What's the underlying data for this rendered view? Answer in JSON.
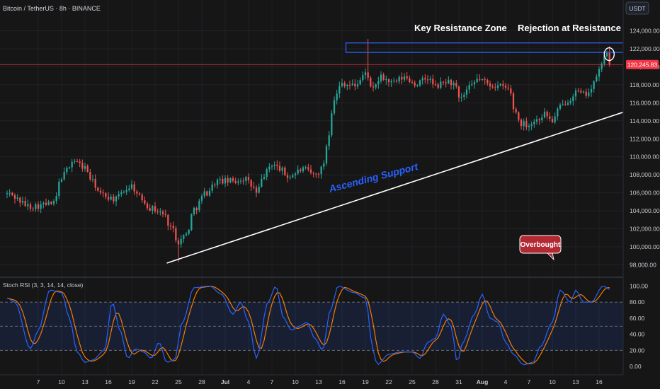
{
  "header": {
    "symbol_title": "Bitcoin / TetherUS · 8h · BINANCE",
    "currency_button": "USDT"
  },
  "colors": {
    "up": "#26a69a",
    "down": "#ef5350",
    "resistance_box": "#2962ff",
    "support_line": "#ffffff",
    "rsi_k": "#2962ff",
    "rsi_d": "#f57c00",
    "last_price": "#f23645",
    "badge": "#b22833"
  },
  "chart_data": [
    {
      "type": "candlestick",
      "title": "Bitcoin / TetherUS · 8h · BINANCE",
      "ylim": [
        97000,
        125500
      ],
      "y_ticks": [
        98000,
        100000,
        102000,
        104000,
        106000,
        108000,
        110000,
        112000,
        114000,
        116000,
        118000,
        120000,
        122000,
        124000
      ],
      "y_tick_labels": [
        "98,000.00",
        "100,000.00",
        "102,000.00",
        "104,000.00",
        "106,000.00",
        "108,000.00",
        "110,000.00",
        "112,000.00",
        "114,000.00",
        "116,000.00",
        "118,000.00",
        "120,000.00",
        "122,000.00",
        "124,000.00"
      ],
      "x_tick_labels": [
        "7",
        "10",
        "13",
        "16",
        "19",
        "22",
        "25",
        "28",
        "Jul",
        "4",
        "7",
        "10",
        "13",
        "16",
        "19",
        "22",
        "25",
        "28",
        "31",
        "Aug",
        "4",
        "7",
        "10",
        "13",
        "16"
      ],
      "last_price": 120245.83,
      "last_price_label": "120,245.83",
      "anchors": [
        {
          "d": 0,
          "p": 105900
        },
        {
          "d": 3,
          "p": 104500
        },
        {
          "d": 6,
          "p": 104800
        },
        {
          "d": 7,
          "p": 107800
        },
        {
          "d": 8.5,
          "p": 109600
        },
        {
          "d": 10,
          "p": 108800
        },
        {
          "d": 11,
          "p": 107200
        },
        {
          "d": 12,
          "p": 105800
        },
        {
          "d": 14,
          "p": 105300
        },
        {
          "d": 15,
          "p": 106300
        },
        {
          "d": 16,
          "p": 106800
        },
        {
          "d": 17,
          "p": 105500
        },
        {
          "d": 18.5,
          "p": 104300
        },
        {
          "d": 20,
          "p": 103700
        },
        {
          "d": 21,
          "p": 102300
        },
        {
          "d": 22,
          "p": 100600
        },
        {
          "d": 23,
          "p": 101400
        },
        {
          "d": 24,
          "p": 104200
        },
        {
          "d": 25.5,
          "p": 106000
        },
        {
          "d": 27,
          "p": 107300
        },
        {
          "d": 29,
          "p": 107300
        },
        {
          "d": 30.5,
          "p": 107600
        },
        {
          "d": 31.5,
          "p": 106700
        },
        {
          "d": 32,
          "p": 105900
        },
        {
          "d": 33,
          "p": 108000
        },
        {
          "d": 34,
          "p": 109200
        },
        {
          "d": 35,
          "p": 108700
        },
        {
          "d": 36,
          "p": 107800
        },
        {
          "d": 38,
          "p": 108600
        },
        {
          "d": 39.5,
          "p": 108000
        },
        {
          "d": 40.5,
          "p": 108700
        },
        {
          "d": 41,
          "p": 111300
        },
        {
          "d": 42,
          "p": 116500
        },
        {
          "d": 43,
          "p": 118200
        },
        {
          "d": 44.5,
          "p": 117900
        },
        {
          "d": 46.2,
          "p": 119300
        },
        {
          "d": 46.8,
          "p": 117300
        },
        {
          "d": 48,
          "p": 118800
        },
        {
          "d": 49.5,
          "p": 118200
        },
        {
          "d": 51,
          "p": 118800
        },
        {
          "d": 52.5,
          "p": 118100
        },
        {
          "d": 54,
          "p": 118700
        },
        {
          "d": 55,
          "p": 117800
        },
        {
          "d": 56.5,
          "p": 118400
        },
        {
          "d": 57.5,
          "p": 118000
        },
        {
          "d": 58,
          "p": 116300
        },
        {
          "d": 59.5,
          "p": 117700
        },
        {
          "d": 60.5,
          "p": 118700
        },
        {
          "d": 62,
          "p": 118000
        },
        {
          "d": 63.5,
          "p": 117800
        },
        {
          "d": 64.5,
          "p": 117500
        },
        {
          "d": 65,
          "p": 115400
        },
        {
          "d": 66,
          "p": 113700
        },
        {
          "d": 67,
          "p": 113600
        },
        {
          "d": 68,
          "p": 114100
        },
        {
          "d": 69,
          "p": 114800
        },
        {
          "d": 70,
          "p": 114000
        },
        {
          "d": 71,
          "p": 115500
        },
        {
          "d": 72,
          "p": 116300
        },
        {
          "d": 73,
          "p": 117200
        },
        {
          "d": 74,
          "p": 116900
        },
        {
          "d": 75,
          "p": 117500
        },
        {
          "d": 76,
          "p": 119600
        },
        {
          "d": 77,
          "p": 121800
        },
        {
          "d": 77.6,
          "p": 120300
        }
      ],
      "annotations": {
        "key_resistance": "Key Resistance Zone",
        "rejection": "Rejection at Resistance",
        "ascending_support": "Ascending Support",
        "overbought": "Overbought"
      },
      "resistance_zone": {
        "y_low": 121600,
        "y_high": 122650,
        "x_from_day": 43.5,
        "x_to_day": 79.5
      },
      "support_line": {
        "from": {
          "d": 20.5,
          "p": 98200
        },
        "to": {
          "d": 81,
          "p": 115500
        }
      }
    },
    {
      "type": "line",
      "title": "Stoch RSI (3, 3, 14, 14, close)",
      "ylim": [
        -5,
        105
      ],
      "y_ticks": [
        0,
        20,
        40,
        60,
        80,
        100
      ],
      "y_tick_labels": [
        "0.00",
        "20.00",
        "40.00",
        "60.00",
        "80.00",
        "100.00"
      ],
      "bands": [
        20,
        50,
        80
      ],
      "k_anchors": [
        {
          "d": 0,
          "v": 85
        },
        {
          "d": 1,
          "v": 80
        },
        {
          "d": 3,
          "v": 22
        },
        {
          "d": 4,
          "v": 45
        },
        {
          "d": 5.5,
          "v": 95
        },
        {
          "d": 7,
          "v": 92
        },
        {
          "d": 8,
          "v": 60
        },
        {
          "d": 9,
          "v": 18
        },
        {
          "d": 10,
          "v": 5
        },
        {
          "d": 11,
          "v": 8
        },
        {
          "d": 12.5,
          "v": 20
        },
        {
          "d": 13.5,
          "v": 80
        },
        {
          "d": 14.5,
          "v": 45
        },
        {
          "d": 15.5,
          "v": 10
        },
        {
          "d": 16.5,
          "v": 22
        },
        {
          "d": 17.5,
          "v": 18
        },
        {
          "d": 18.5,
          "v": 10
        },
        {
          "d": 19.5,
          "v": 30
        },
        {
          "d": 20.5,
          "v": 5
        },
        {
          "d": 21.5,
          "v": 8
        },
        {
          "d": 22.5,
          "v": 55
        },
        {
          "d": 24,
          "v": 98
        },
        {
          "d": 26,
          "v": 100
        },
        {
          "d": 27.5,
          "v": 90
        },
        {
          "d": 29,
          "v": 65
        },
        {
          "d": 30,
          "v": 80
        },
        {
          "d": 31,
          "v": 55
        },
        {
          "d": 32,
          "v": 10
        },
        {
          "d": 33.5,
          "v": 80
        },
        {
          "d": 34.5,
          "v": 100
        },
        {
          "d": 35.5,
          "v": 60
        },
        {
          "d": 36.5,
          "v": 45
        },
        {
          "d": 37.5,
          "v": 50
        },
        {
          "d": 38.5,
          "v": 55
        },
        {
          "d": 39.5,
          "v": 35
        },
        {
          "d": 40.5,
          "v": 20
        },
        {
          "d": 41.5,
          "v": 70
        },
        {
          "d": 42.5,
          "v": 100
        },
        {
          "d": 44.5,
          "v": 92
        },
        {
          "d": 46,
          "v": 85
        },
        {
          "d": 47,
          "v": 20
        },
        {
          "d": 47.5,
          "v": 2
        },
        {
          "d": 49,
          "v": 15
        },
        {
          "d": 50.5,
          "v": 18
        },
        {
          "d": 52,
          "v": 18
        },
        {
          "d": 53,
          "v": 10
        },
        {
          "d": 54,
          "v": 30
        },
        {
          "d": 55,
          "v": 35
        },
        {
          "d": 56,
          "v": 65
        },
        {
          "d": 57,
          "v": 50
        },
        {
          "d": 57.8,
          "v": 5
        },
        {
          "d": 58.5,
          "v": 30
        },
        {
          "d": 60,
          "v": 65
        },
        {
          "d": 61,
          "v": 90
        },
        {
          "d": 62,
          "v": 60
        },
        {
          "d": 63,
          "v": 55
        },
        {
          "d": 64,
          "v": 30
        },
        {
          "d": 65,
          "v": 15
        },
        {
          "d": 66.3,
          "v": 2
        },
        {
          "d": 67.5,
          "v": 5
        },
        {
          "d": 68.5,
          "v": 25
        },
        {
          "d": 70,
          "v": 55
        },
        {
          "d": 71,
          "v": 95
        },
        {
          "d": 72.3,
          "v": 80
        },
        {
          "d": 73,
          "v": 95
        },
        {
          "d": 74,
          "v": 80
        },
        {
          "d": 75,
          "v": 80
        },
        {
          "d": 76.5,
          "v": 100
        },
        {
          "d": 77.6,
          "v": 95
        }
      ]
    }
  ]
}
